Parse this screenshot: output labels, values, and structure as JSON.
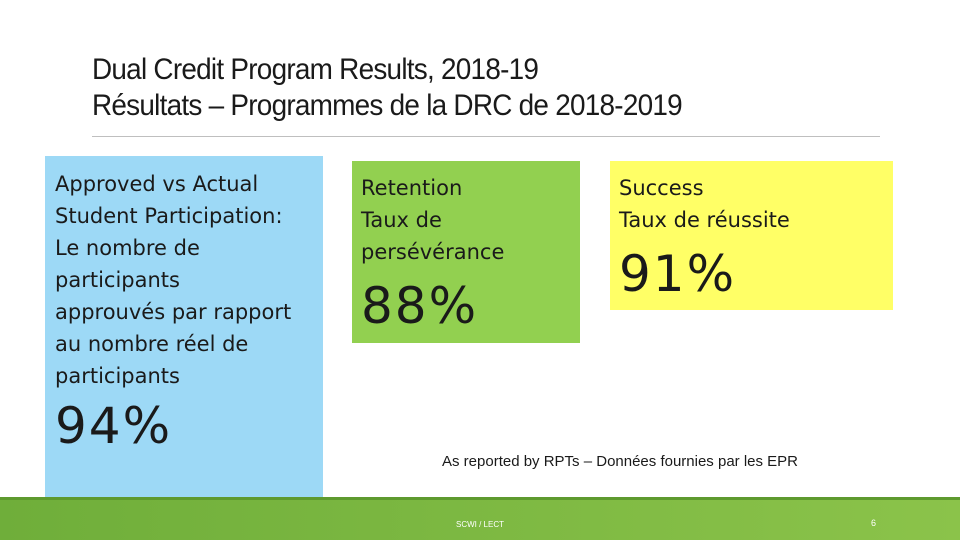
{
  "title": {
    "line1": "Dual Credit Program Results, 2018-19",
    "line2": "Résultats – Programmes de la DRC de 2018-2019"
  },
  "boxes": {
    "participation": {
      "label_lines": [
        "Approved vs Actual",
        "Student Participation:",
        "Le nombre de",
        "participants",
        "approuvés par rapport",
        "au nombre réel de",
        "participants"
      ],
      "value": "94%",
      "color": "#9dd9f6"
    },
    "retention": {
      "label_lines": [
        "Retention",
        "Taux de",
        "persévérance"
      ],
      "value": "88%",
      "color": "#92d050"
    },
    "success": {
      "label_lines": [
        "Success",
        "Taux de réussite"
      ],
      "value": "91%",
      "color": "#ffff66"
    }
  },
  "source_note": "As reported by RPTs – Données fournies par les EPR",
  "footer": {
    "left_text": "SCWI / LECT",
    "page_number": "6",
    "color": "#7cb342"
  }
}
